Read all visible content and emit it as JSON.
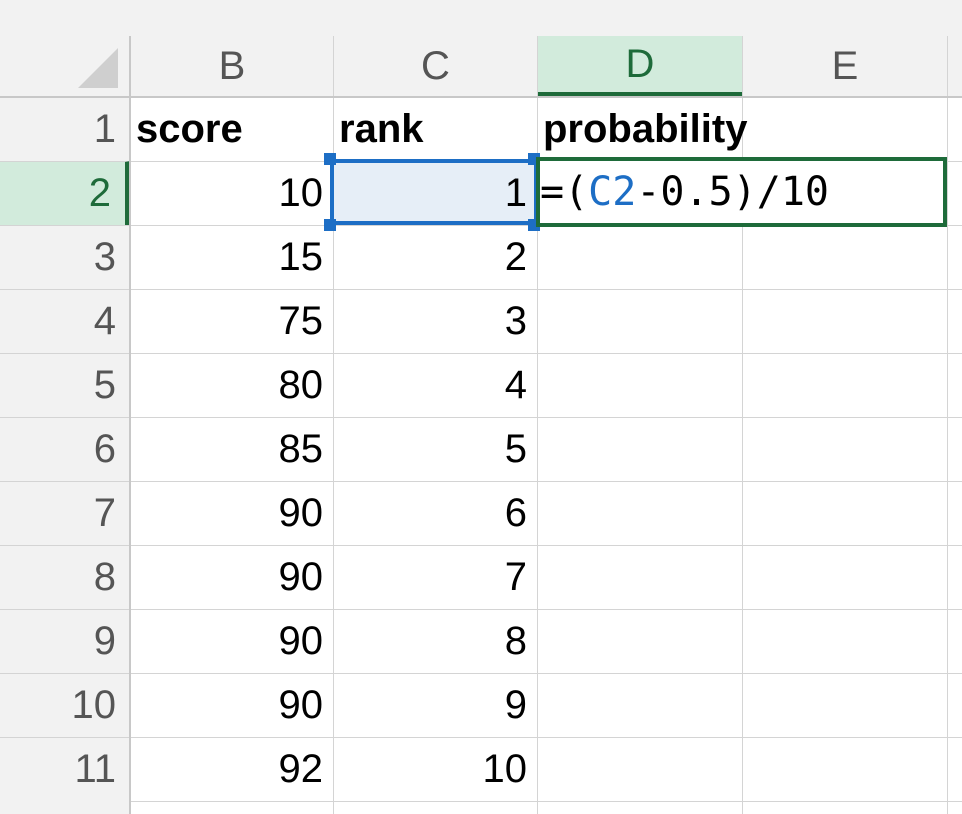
{
  "columns": [
    "B",
    "C",
    "D",
    "E"
  ],
  "selected_column": "D",
  "rows": [
    "1",
    "2",
    "3",
    "4",
    "5",
    "6",
    "7",
    "8",
    "9",
    "10",
    "11"
  ],
  "selected_row": "2",
  "headers": {
    "score": "score",
    "rank": "rank",
    "probability": "probability"
  },
  "scores": [
    "10",
    "15",
    "75",
    "80",
    "85",
    "90",
    "90",
    "90",
    "90",
    "92"
  ],
  "ranks": [
    "1",
    "2",
    "3",
    "4",
    "5",
    "6",
    "7",
    "8",
    "9",
    "10"
  ],
  "formula": {
    "prefix": "=(",
    "reference": "C2",
    "suffix": "-0.5)/10"
  },
  "colors": {
    "accent_green": "#1e6b3a",
    "selection_green_bg": "#d2ebdc",
    "reference_blue": "#1d6ec5",
    "reference_fill": "#e6eef7",
    "header_bg": "#f2f2f2",
    "gridline": "#d4d4d4"
  },
  "icons": {
    "select_all": "select-all-triangle-icon"
  }
}
